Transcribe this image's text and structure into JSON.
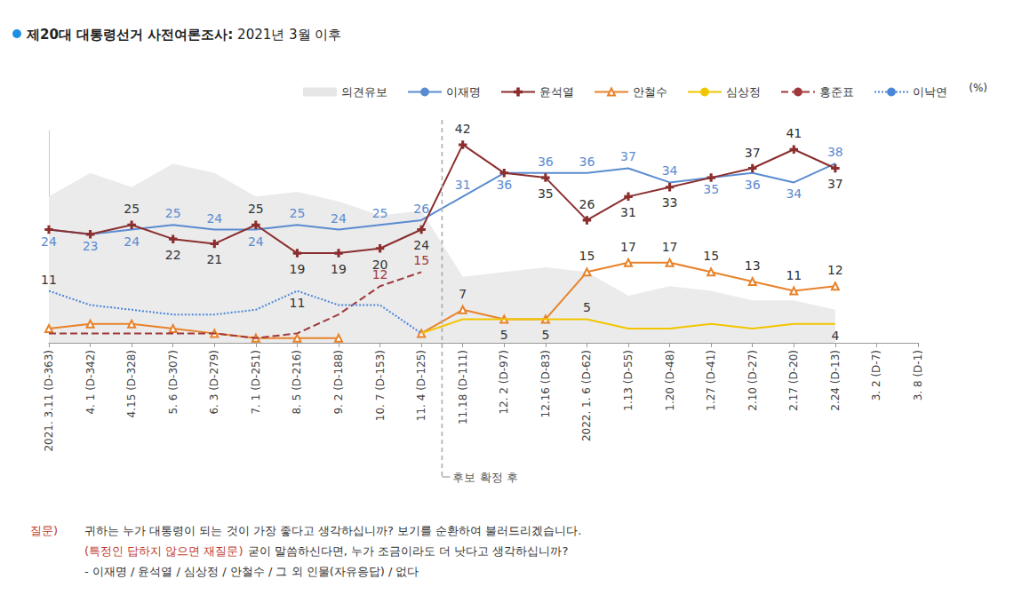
{
  "chart_data": {
    "type": "line",
    "title": "제20대 대통령선거 사전여론조사: 2021년 3월 이후",
    "categories": [
      "2021. 3.11 (D-363)",
      "4. 1 (D-342)",
      "4.15 (D-328)",
      "5. 6 (D-307)",
      "6. 3 (D-279)",
      "7. 1 (D-251)",
      "8. 5 (D-216)",
      "9. 2 (D-188)",
      "10. 7 (D-153)",
      "11. 4 (D-125)",
      "11.18 (D-111)",
      "12. 2 (D-97)",
      "12.16 (D-83)",
      "2022. 1. 6 (D-62)",
      "1.13 (D-55)",
      "1.20 (D-48)",
      "1.27 (D-41)",
      "2.10 (D-27)",
      "2.17 (D-20)",
      "2.24 (D-13)",
      "3. 2 (D-7)",
      "3. 8 (D-1)"
    ],
    "ylim": [
      0,
      45
    ],
    "tick_labels": "x",
    "grid": false,
    "legend": "top-right",
    "legend_suffix": "(%)",
    "data_labels": true,
    "series": [
      {
        "name": "의견유보",
        "type": "area",
        "color": "#ebebeb",
        "values": [
          31,
          36,
          33,
          38,
          36,
          31,
          32,
          30,
          27,
          28,
          14,
          15,
          16,
          15,
          10,
          12,
          11,
          9,
          9,
          7,
          null,
          null
        ]
      },
      {
        "name": "이재명",
        "color": "#5b8bd0",
        "marker": "none",
        "line_style": "solid",
        "values": [
          24,
          23,
          24,
          25,
          24,
          24,
          25,
          24,
          25,
          26,
          31,
          36,
          36,
          36,
          37,
          34,
          35,
          36,
          34,
          38,
          null,
          null
        ],
        "value_labels": [
          "24",
          "23",
          "24",
          "25",
          "24",
          "24",
          "25",
          "24",
          "25",
          "26",
          "31",
          "36",
          "36",
          "36",
          "37",
          "34",
          "35",
          "36",
          "34",
          "38",
          null,
          null
        ]
      },
      {
        "name": "윤석열",
        "color": "#8b2e2e",
        "marker": "plus",
        "line_style": "solid",
        "values": [
          24,
          23,
          25,
          22,
          21,
          25,
          19,
          19,
          20,
          24,
          42,
          36,
          35,
          26,
          31,
          33,
          35,
          37,
          41,
          37,
          null,
          null
        ],
        "value_labels": [
          null,
          null,
          "25",
          "22",
          "21",
          "25",
          "19",
          "19",
          "20",
          "24",
          "42",
          null,
          "35",
          "26",
          "31",
          "33",
          null,
          "37",
          "41",
          "37",
          null,
          null
        ]
      },
      {
        "name": "안철수",
        "color": "#e8822a",
        "marker": "triangle",
        "line_style": "solid",
        "values": [
          3,
          4,
          4,
          3,
          2,
          1,
          1,
          1,
          null,
          2,
          7,
          5,
          5,
          15,
          17,
          17,
          15,
          13,
          11,
          12,
          null,
          null
        ],
        "value_labels": [
          null,
          null,
          null,
          null,
          null,
          null,
          null,
          null,
          null,
          null,
          "7",
          "5",
          "5",
          "15",
          "17",
          "17",
          "15",
          "13",
          "11",
          "12",
          null,
          null
        ]
      },
      {
        "name": "심상정",
        "color": "#f2c500",
        "marker": "none",
        "line_style": "solid",
        "values": [
          null,
          null,
          null,
          null,
          null,
          null,
          null,
          null,
          null,
          2,
          5,
          5,
          5,
          5,
          3,
          3,
          4,
          3,
          4,
          4,
          null,
          null
        ],
        "value_labels": [
          null,
          null,
          null,
          null,
          null,
          null,
          null,
          null,
          null,
          null,
          null,
          null,
          null,
          "5",
          null,
          null,
          null,
          null,
          null,
          "4",
          null,
          null
        ]
      },
      {
        "name": "홍준표",
        "color": "#a0393b",
        "marker": "none",
        "line_style": "dashed",
        "values": [
          2,
          2,
          2,
          2,
          2,
          1,
          2,
          6,
          12,
          15,
          null,
          null,
          null,
          null,
          null,
          null,
          null,
          null,
          null,
          null,
          null,
          null
        ],
        "value_labels": [
          null,
          null,
          null,
          null,
          null,
          null,
          null,
          null,
          "12",
          "15",
          null,
          null,
          null,
          null,
          null,
          null,
          null,
          null,
          null,
          null,
          null,
          null
        ]
      },
      {
        "name": "이낙연",
        "color": "#4a86d8",
        "marker": "none",
        "line_style": "dotted",
        "values": [
          11,
          8,
          7,
          6,
          6,
          7,
          11,
          8,
          8,
          2,
          null,
          null,
          null,
          null,
          null,
          null,
          null,
          null,
          null,
          null,
          null,
          null
        ],
        "value_labels": [
          "11",
          null,
          null,
          null,
          null,
          null,
          "11",
          null,
          null,
          null,
          null,
          null,
          null,
          null,
          null,
          null,
          null,
          null,
          null,
          null,
          null,
          null
        ]
      }
    ],
    "annotations": [
      {
        "text": "후보 확정 후",
        "between": [
          "11. 4 (D-125)",
          "11.18 (D-111)"
        ]
      }
    ],
    "question": {
      "label": "질문)",
      "lines": [
        {
          "text": "귀하는 누가 대통령이 되는 것이 가장 좋다고 생각하십니까? 보기를 순환하여 불러드리겠습니다."
        },
        {
          "highlight": "(특정인 답하지 않으면 재질문)",
          "text": "굳이 말씀하신다면, 누가 조금이라도 더 낫다고 생각하십니까?"
        },
        {
          "text": "- 이재명 / 윤석열 / 심상정 / 안철수 / 그 외 인물(자유응답) / 없다"
        }
      ]
    }
  }
}
